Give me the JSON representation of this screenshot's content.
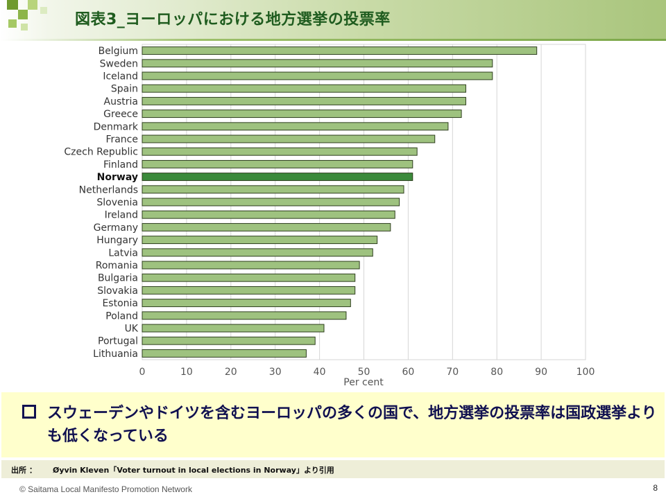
{
  "header": {
    "title": "図表3_ヨーロッパにおける地方選挙の投票率"
  },
  "colors": {
    "bar": "#9ec27f",
    "bar_highlight": "#3b8a3b",
    "bar_stroke": "#2e3e1e",
    "grid": "#d6d6d6",
    "title": "#1f5c1f",
    "summary_bg": "#ffffcc"
  },
  "chart_data": {
    "type": "bar",
    "orientation": "horizontal",
    "categories": [
      "Belgium",
      "Sweden",
      "Iceland",
      "Spain",
      "Austria",
      "Greece",
      "Denmark",
      "France",
      "Czech Republic",
      "Finland",
      "Norway",
      "Netherlands",
      "Slovenia",
      "Ireland",
      "Germany",
      "Hungary",
      "Latvia",
      "Romania",
      "Bulgaria",
      "Slovakia",
      "Estonia",
      "Poland",
      "UK",
      "Portugal",
      "Lithuania"
    ],
    "values": [
      89,
      79,
      79,
      73,
      73,
      72,
      69,
      66,
      62,
      61,
      61,
      59,
      58,
      57,
      56,
      53,
      52,
      49,
      48,
      48,
      47,
      46,
      41,
      39,
      37
    ],
    "highlight": "Norway",
    "xlabel": "Per cent",
    "xlim": [
      0,
      100
    ],
    "xticks": [
      0,
      10,
      20,
      30,
      40,
      50,
      60,
      70,
      80,
      90,
      100
    ],
    "grid": true
  },
  "summary": {
    "text": "スウェーデンやドイツを含むヨーロッパの多くの国で、地方選挙の投票率は国政選挙よりも低くなっている"
  },
  "source": {
    "prefix": "出所 ：",
    "text": "Øyvin Kleven「Voter turnout in local elections in Norway」より引用"
  },
  "footer": {
    "copyright": "© Saitama Local Manifesto Promotion Network",
    "page_number": "8"
  }
}
